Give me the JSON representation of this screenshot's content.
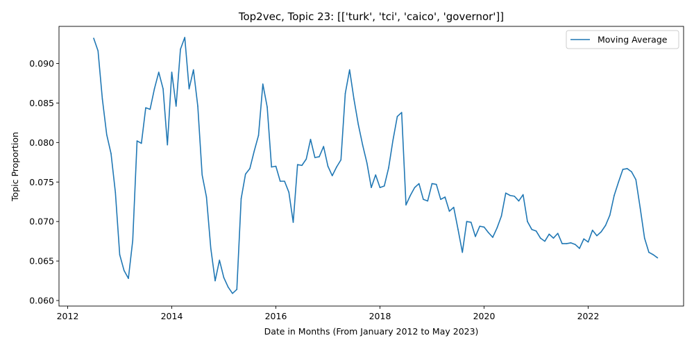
{
  "chart_data": {
    "type": "line",
    "title": "Top2vec, Topic 23: [['turk', 'tci', 'caico', 'governor']]",
    "xlabel": "Date in Months (From January 2012 to May 2023)",
    "ylabel": "Topic Proportion",
    "xlim": [
      "2011-11",
      "2023-11"
    ],
    "ylim": [
      0.0593,
      0.0947
    ],
    "x_ticks": [
      "2012",
      "2014",
      "2016",
      "2018",
      "2020",
      "2022"
    ],
    "y_ticks": [
      "0.060",
      "0.065",
      "0.070",
      "0.075",
      "0.080",
      "0.085",
      "0.090"
    ],
    "grid": false,
    "legend_position": "upper right",
    "series": [
      {
        "name": "Moving Average",
        "color": "#1f77b4",
        "x": [
          "2012-07",
          "2012-08",
          "2012-09",
          "2012-10",
          "2012-11",
          "2012-12",
          "2013-01",
          "2013-02",
          "2013-03",
          "2013-04",
          "2013-05",
          "2013-06",
          "2013-07",
          "2013-08",
          "2013-09",
          "2013-10",
          "2013-11",
          "2013-12",
          "2014-01",
          "2014-02",
          "2014-03",
          "2014-04",
          "2014-05",
          "2014-06",
          "2014-07",
          "2014-08",
          "2014-09",
          "2014-10",
          "2014-11",
          "2014-12",
          "2015-01",
          "2015-02",
          "2015-03",
          "2015-04",
          "2015-05",
          "2015-06",
          "2015-07",
          "2015-08",
          "2015-09",
          "2015-10",
          "2015-11",
          "2015-12",
          "2016-01",
          "2016-02",
          "2016-03",
          "2016-04",
          "2016-05",
          "2016-06",
          "2016-07",
          "2016-08",
          "2016-09",
          "2016-10",
          "2016-11",
          "2016-12",
          "2017-01",
          "2017-02",
          "2017-03",
          "2017-04",
          "2017-05",
          "2017-06",
          "2017-07",
          "2017-08",
          "2017-09",
          "2017-10",
          "2017-11",
          "2017-12",
          "2018-01",
          "2018-02",
          "2018-03",
          "2018-04",
          "2018-05",
          "2018-06",
          "2018-07",
          "2018-08",
          "2018-09",
          "2018-10",
          "2018-11",
          "2018-12",
          "2019-01",
          "2019-02",
          "2019-03",
          "2019-04",
          "2019-05",
          "2019-06",
          "2019-07",
          "2019-08",
          "2019-09",
          "2019-10",
          "2019-11",
          "2019-12",
          "2020-01",
          "2020-02",
          "2020-03",
          "2020-04",
          "2020-05",
          "2020-06",
          "2020-07",
          "2020-08",
          "2020-09",
          "2020-10",
          "2020-11",
          "2020-12",
          "2021-01",
          "2021-02",
          "2021-03",
          "2021-04",
          "2021-05",
          "2021-06",
          "2021-07",
          "2021-08",
          "2021-09",
          "2021-10",
          "2021-11",
          "2021-12",
          "2022-01",
          "2022-02",
          "2022-03",
          "2022-04",
          "2022-05",
          "2022-06",
          "2022-07",
          "2022-08",
          "2022-09",
          "2022-10",
          "2022-11",
          "2022-12",
          "2023-01",
          "2023-02",
          "2023-03",
          "2023-04",
          "2023-05"
        ],
        "values": [
          0.0932,
          0.0916,
          0.0855,
          0.081,
          0.0786,
          0.0737,
          0.0658,
          0.0638,
          0.0628,
          0.0676,
          0.0802,
          0.0799,
          0.0844,
          0.0842,
          0.0868,
          0.0889,
          0.0868,
          0.0797,
          0.0889,
          0.0846,
          0.0918,
          0.0933,
          0.0868,
          0.0892,
          0.0846,
          0.0759,
          0.0731,
          0.0666,
          0.0625,
          0.0651,
          0.0629,
          0.0617,
          0.0609,
          0.0614,
          0.0729,
          0.076,
          0.0767,
          0.0789,
          0.0809,
          0.0874,
          0.0845,
          0.0769,
          0.077,
          0.0751,
          0.0751,
          0.0737,
          0.0699,
          0.0772,
          0.0771,
          0.0779,
          0.0804,
          0.0781,
          0.0782,
          0.0795,
          0.077,
          0.0758,
          0.0769,
          0.0778,
          0.0862,
          0.0892,
          0.0855,
          0.0823,
          0.0797,
          0.0774,
          0.0743,
          0.0759,
          0.0743,
          0.0745,
          0.0768,
          0.0803,
          0.0833,
          0.0838,
          0.0721,
          0.0733,
          0.0743,
          0.0748,
          0.0728,
          0.0726,
          0.0748,
          0.0747,
          0.0728,
          0.0731,
          0.0713,
          0.0718,
          0.069,
          0.0661,
          0.07,
          0.0699,
          0.0681,
          0.0694,
          0.0693,
          0.0686,
          0.068,
          0.0692,
          0.0707,
          0.0736,
          0.0733,
          0.0732,
          0.0726,
          0.0734,
          0.07,
          0.069,
          0.0688,
          0.0679,
          0.0675,
          0.0684,
          0.0679,
          0.0685,
          0.0672,
          0.0672,
          0.0673,
          0.0671,
          0.0666,
          0.0678,
          0.0674,
          0.0689,
          0.0682,
          0.0687,
          0.0695,
          0.0708,
          0.0733,
          0.075,
          0.0766,
          0.0767,
          0.0763,
          0.0753,
          0.0717,
          0.0679,
          0.0661,
          0.0658,
          0.0654
        ]
      }
    ]
  }
}
